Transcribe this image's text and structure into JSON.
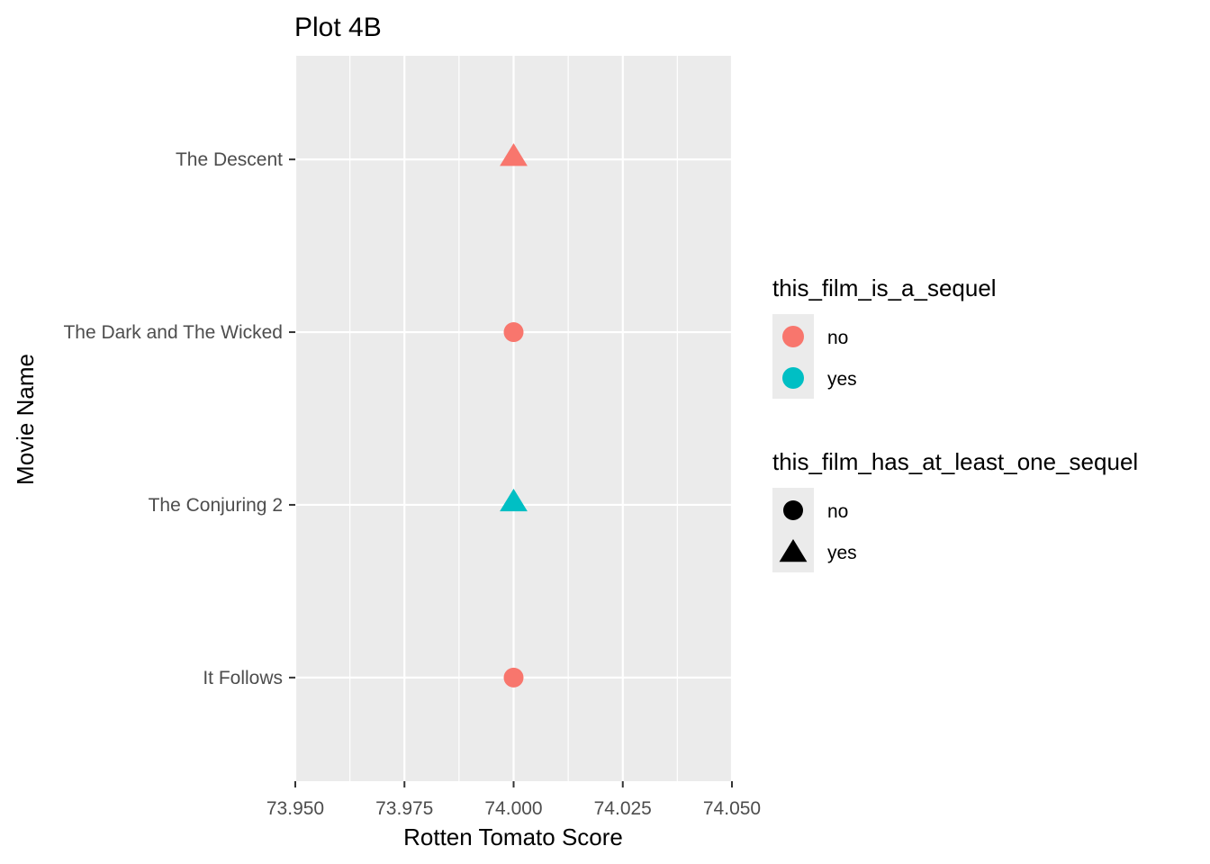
{
  "chart_data": {
    "type": "scatter",
    "title": "Plot 4B",
    "xlabel": "Rotten Tomato Score",
    "ylabel": "Movie Name",
    "xlim": [
      73.95,
      74.05
    ],
    "x_ticks": [
      "73.950",
      "73.975",
      "74.000",
      "74.025",
      "74.050"
    ],
    "x_tick_values": [
      73.95,
      73.975,
      74.0,
      74.025,
      74.05
    ],
    "categories": [
      "It Follows",
      "The Conjuring 2",
      "The Dark and The Wicked",
      "The Descent"
    ],
    "grid": true,
    "legend_position": "right",
    "points": [
      {
        "movie": "The Descent",
        "score": 74,
        "this_film_is_a_sequel": "no",
        "this_film_has_at_least_one_sequel": "yes"
      },
      {
        "movie": "The Dark and The Wicked",
        "score": 74,
        "this_film_is_a_sequel": "no",
        "this_film_has_at_least_one_sequel": "no"
      },
      {
        "movie": "The Conjuring 2",
        "score": 74,
        "this_film_is_a_sequel": "yes",
        "this_film_has_at_least_one_sequel": "yes"
      },
      {
        "movie": "It Follows",
        "score": 74,
        "this_film_is_a_sequel": "no",
        "this_film_has_at_least_one_sequel": "no"
      }
    ],
    "legends": {
      "color": {
        "title": "this_film_is_a_sequel",
        "items": [
          {
            "label": "no",
            "color": "#F8766D"
          },
          {
            "label": "yes",
            "color": "#00BFC4"
          }
        ]
      },
      "shape": {
        "title": "this_film_has_at_least_one_sequel",
        "items": [
          {
            "label": "no",
            "shape": "circle"
          },
          {
            "label": "yes",
            "shape": "triangle"
          }
        ]
      }
    }
  }
}
